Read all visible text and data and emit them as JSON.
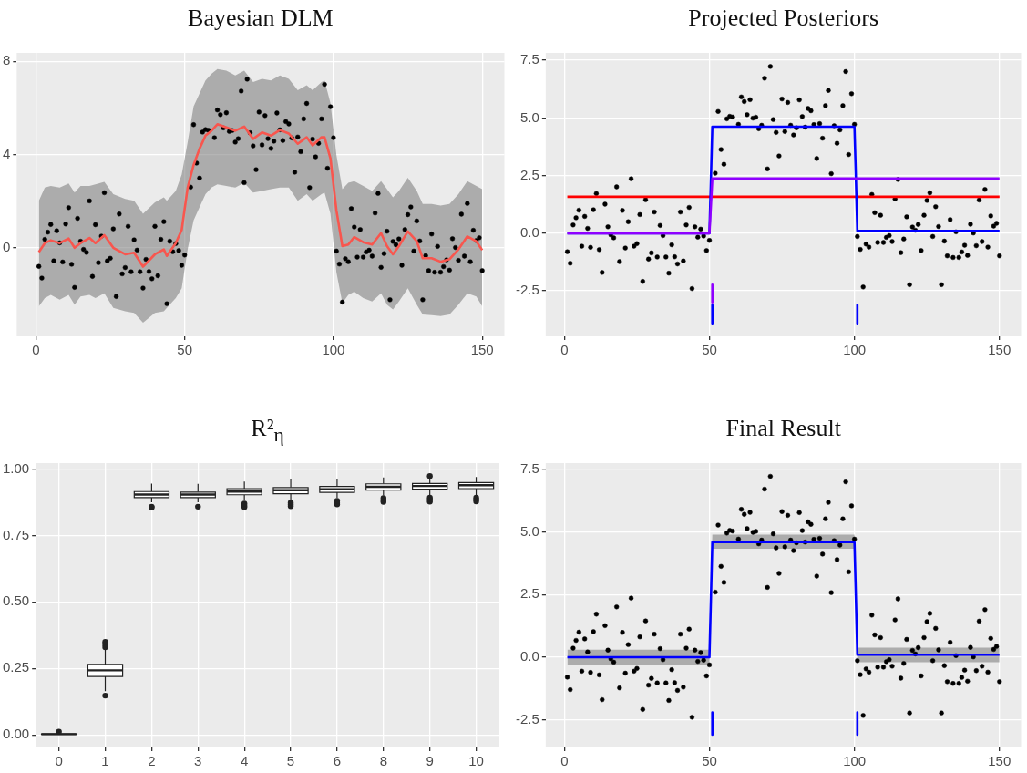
{
  "chart_data": [
    {
      "type": "line",
      "title": "Bayesian DLM",
      "xlim": [
        -6.45,
        157.45
      ],
      "xticks": [
        0,
        50,
        100,
        150
      ],
      "ylim": [
        -3.8,
        8.36
      ],
      "yticks": [
        0,
        4,
        8
      ],
      "grid": true,
      "series": [
        {
          "type": "scatter",
          "marker": "circle",
          "color": "#000000",
          "x": [
            1,
            2,
            3,
            4,
            5,
            6,
            7,
            8,
            9,
            10,
            11,
            12,
            13,
            14,
            15,
            16,
            17,
            18,
            19,
            20,
            21,
            22,
            23,
            24,
            25,
            26,
            27,
            28,
            29,
            30,
            31,
            32,
            33,
            34,
            35,
            36,
            37,
            38,
            39,
            40,
            41,
            42,
            43,
            44,
            45,
            46,
            47,
            48,
            49,
            50,
            52,
            53,
            54,
            55,
            56,
            57,
            58,
            60,
            61,
            62,
            63,
            64,
            65,
            66,
            67,
            68,
            69,
            70,
            71,
            72,
            73,
            74,
            75,
            76,
            77,
            78,
            79,
            80,
            81,
            82,
            83,
            84,
            85,
            86,
            87,
            88,
            89,
            90,
            91,
            92,
            93,
            94,
            95,
            96,
            97,
            98,
            99,
            100,
            101,
            102,
            103,
            104,
            105,
            106,
            107,
            108,
            109,
            110,
            111,
            112,
            113,
            114,
            115,
            116,
            117,
            118,
            119,
            120,
            121,
            122,
            123,
            124,
            125,
            126,
            127,
            128,
            129,
            130,
            131,
            132,
            133,
            134,
            135,
            136,
            137,
            138,
            139,
            140,
            141,
            142,
            143,
            144,
            145,
            146,
            147,
            148,
            149,
            150
          ],
          "values": [
            -0.8,
            -1.3,
            0.36,
            0.67,
            1.0,
            -0.56,
            0.73,
            0.21,
            -0.61,
            1.02,
            1.72,
            -0.71,
            -1.7,
            1.26,
            0.28,
            -0.07,
            -0.2,
            2.01,
            -1.23,
            0.99,
            -0.64,
            0.5,
            2.36,
            -0.56,
            -0.45,
            0.81,
            -2.09,
            1.45,
            -1.12,
            -0.85,
            0.92,
            -1.03,
            0.34,
            -0.1,
            -1.03,
            -1.73,
            -0.5,
            -1.02,
            -1.33,
            0.92,
            -1.2,
            0.36,
            1.12,
            -2.4,
            0.28,
            -0.17,
            0.18,
            -0.12,
            -0.75,
            -0.31,
            2.6,
            5.28,
            3.63,
            2.99,
            4.96,
            5.07,
            5.04,
            4.72,
            5.91,
            5.71,
            5.14,
            5.79,
            4.99,
            5.03,
            4.53,
            4.68,
            6.72,
            2.79,
            7.23,
            4.93,
            4.37,
            3.35,
            5.82,
            4.41,
            5.67,
            4.68,
            4.26,
            4.57,
            5.78,
            5.06,
            4.6,
            5.41,
            5.31,
            4.71,
            3.24,
            4.75,
            4.12,
            5.53,
            6.19,
            2.58,
            4.66,
            3.9,
            4.48,
            5.53,
            7.01,
            3.41,
            6.05,
            4.72,
            -0.14,
            -0.7,
            -2.33,
            -0.47,
            -0.6,
            1.68,
            0.89,
            -0.4,
            0.78,
            -0.4,
            -0.18,
            -0.1,
            -0.36,
            1.49,
            2.33,
            -0.84,
            -0.25,
            0.71,
            -2.23,
            0.27,
            0.13,
            0.38,
            -0.75,
            0.78,
            1.42,
            1.75,
            -0.14,
            1.15,
            0.29,
            -2.23,
            -0.34,
            -0.98,
            0.59,
            -1.05,
            0.06,
            -1.05,
            -0.81,
            -0.52,
            -0.96,
            0.39,
            0.01,
            -0.54,
            1.44,
            -0.36,
            1.9,
            -0.6,
            0.75,
            0.31,
            0.43,
            -0.98
          ]
        },
        {
          "type": "line",
          "color": "#f8564e",
          "x": [
            1,
            3,
            5,
            8,
            11,
            13,
            15,
            18,
            20,
            23,
            26,
            30,
            33,
            36,
            40,
            43,
            44,
            47,
            49,
            51,
            53,
            55,
            57,
            59,
            61,
            64,
            67,
            70,
            73,
            76,
            79,
            82,
            85,
            88,
            91,
            93,
            96,
            97,
            99,
            101,
            103,
            105,
            107,
            110,
            113,
            116,
            118,
            120,
            122,
            125,
            128,
            130,
            133,
            136,
            139,
            142,
            145,
            148,
            150
          ],
          "values": [
            -0.18,
            0.2,
            0.32,
            0.2,
            0.4,
            0,
            0.2,
            0.42,
            0.2,
            0.54,
            0,
            -0.28,
            -0.21,
            -0.81,
            -0.28,
            -0.07,
            -0.35,
            0.2,
            0.77,
            2.58,
            3.55,
            4.25,
            4.81,
            5.02,
            5.3,
            5.16,
            5.02,
            5.2,
            4.67,
            4.95,
            4.81,
            5.05,
            4.9,
            4.46,
            4.74,
            4.39,
            4.74,
            4.74,
            3.83,
            1.6,
            0.07,
            0.14,
            0.46,
            0.24,
            0.14,
            0.63,
            0.07,
            -0.28,
            0.07,
            0.7,
            0.28,
            -0.45,
            -0.45,
            -0.6,
            -0.49,
            -0.07,
            0.49,
            0.28,
            -0.1
          ],
          "lower": [
            -2.51,
            -2.16,
            -2.02,
            -2.23,
            -2.02,
            -2.44,
            -2.09,
            -2.02,
            -2.16,
            -1.95,
            -2.58,
            -2.72,
            -2.79,
            -3.21,
            -2.79,
            -2.72,
            -2.58,
            -2.16,
            -1.74,
            -0.07,
            1.18,
            1.74,
            2.3,
            2.58,
            2.72,
            2.65,
            2.58,
            2.79,
            2.37,
            2.44,
            2.51,
            2.58,
            2.58,
            2.02,
            2.3,
            2.02,
            2.3,
            2.37,
            1.46,
            -1.05,
            -2.37,
            -2.02,
            -1.88,
            -2.16,
            -2.3,
            -1.95,
            -2.44,
            -2.65,
            -2.3,
            -1.74,
            -2.44,
            -2.86,
            -2.89,
            -2.93,
            -2.86,
            -2.44,
            -1.95,
            -2.09,
            -2.51
          ],
          "upper": [
            2.02,
            2.58,
            2.65,
            2.58,
            2.76,
            2.37,
            2.65,
            2.65,
            2.72,
            2.83,
            2.3,
            2.09,
            2.02,
            1.46,
            1.95,
            2.16,
            2.02,
            2.44,
            3.14,
            4.53,
            6.06,
            6.62,
            7.18,
            7.46,
            7.67,
            7.6,
            7.39,
            7.6,
            7.11,
            7.25,
            7.18,
            7.39,
            7.25,
            6.76,
            6.97,
            6.76,
            7.11,
            7.18,
            6.2,
            3.97,
            2.51,
            2.79,
            2.86,
            2.65,
            2.44,
            2.86,
            2.51,
            2.16,
            2.44,
            3.0,
            2.44,
            1.88,
            1.88,
            1.81,
            1.88,
            2.3,
            2.86,
            2.65,
            2.51
          ]
        }
      ]
    },
    {
      "type": "line",
      "title": "Projected Posteriors",
      "xlim": [
        -6.45,
        157.45
      ],
      "xticks": [
        0,
        50,
        100,
        150
      ],
      "ylim": [
        -4.47,
        7.82
      ],
      "yticks": [
        -2.5,
        {
          "value": 0,
          "label": "0.0"
        },
        2.5,
        {
          "value": 5,
          "label": "5.0"
        },
        7.5
      ],
      "grid": true,
      "series": [
        {
          "type": "scatter",
          "marker": "circle",
          "color": "#000000",
          "x": [
            1,
            2,
            3,
            4,
            5,
            6,
            7,
            8,
            9,
            10,
            11,
            12,
            13,
            14,
            15,
            16,
            17,
            18,
            19,
            20,
            21,
            22,
            23,
            24,
            25,
            26,
            27,
            28,
            29,
            30,
            31,
            32,
            33,
            34,
            35,
            36,
            37,
            38,
            39,
            40,
            41,
            42,
            43,
            44,
            45,
            46,
            47,
            48,
            49,
            50,
            52,
            53,
            54,
            55,
            56,
            57,
            58,
            60,
            61,
            62,
            63,
            64,
            65,
            66,
            67,
            68,
            69,
            70,
            71,
            72,
            73,
            74,
            75,
            76,
            77,
            78,
            79,
            80,
            81,
            82,
            83,
            84,
            85,
            86,
            87,
            88,
            89,
            90,
            91,
            92,
            93,
            94,
            95,
            96,
            97,
            98,
            99,
            100,
            101,
            102,
            103,
            104,
            105,
            106,
            107,
            108,
            109,
            110,
            111,
            112,
            113,
            114,
            115,
            116,
            117,
            118,
            119,
            120,
            121,
            122,
            123,
            124,
            125,
            126,
            127,
            128,
            129,
            130,
            131,
            132,
            133,
            134,
            135,
            136,
            137,
            138,
            139,
            140,
            141,
            142,
            143,
            144,
            145,
            146,
            147,
            148,
            149,
            150
          ],
          "values": [
            -0.8,
            -1.3,
            0.36,
            0.67,
            1.0,
            -0.56,
            0.73,
            0.21,
            -0.61,
            1.02,
            1.72,
            -0.71,
            -1.7,
            1.26,
            0.28,
            -0.07,
            -0.2,
            2.01,
            -1.23,
            0.99,
            -0.64,
            0.5,
            2.36,
            -0.56,
            -0.45,
            0.81,
            -2.09,
            1.45,
            -1.12,
            -0.85,
            0.92,
            -1.03,
            0.34,
            -0.1,
            -1.03,
            -1.73,
            -0.5,
            -1.02,
            -1.33,
            0.92,
            -1.2,
            0.36,
            1.12,
            -2.4,
            0.28,
            -0.17,
            0.18,
            -0.12,
            -0.75,
            -0.31,
            2.6,
            5.28,
            3.63,
            2.99,
            4.96,
            5.07,
            5.04,
            4.72,
            5.91,
            5.71,
            5.14,
            5.79,
            4.99,
            5.03,
            4.53,
            4.68,
            6.72,
            2.79,
            7.23,
            4.93,
            4.37,
            3.35,
            5.82,
            4.41,
            5.67,
            4.68,
            4.26,
            4.57,
            5.78,
            5.06,
            4.6,
            5.41,
            5.31,
            4.71,
            3.24,
            4.75,
            4.12,
            5.53,
            6.19,
            2.58,
            4.66,
            3.9,
            4.48,
            5.53,
            7.01,
            3.41,
            6.05,
            4.72,
            -0.14,
            -0.7,
            -2.33,
            -0.47,
            -0.6,
            1.68,
            0.89,
            -0.4,
            0.78,
            -0.4,
            -0.18,
            -0.1,
            -0.36,
            1.49,
            2.33,
            -0.84,
            -0.25,
            0.71,
            -2.23,
            0.27,
            0.13,
            0.38,
            -0.75,
            0.78,
            1.42,
            1.75,
            -0.14,
            1.15,
            0.29,
            -2.23,
            -0.34,
            -0.98,
            0.59,
            -1.05,
            0.06,
            -1.05,
            -0.81,
            -0.52,
            -0.96,
            0.39,
            0.01,
            -0.54,
            1.44,
            -0.36,
            1.9,
            -0.6,
            0.75,
            0.31,
            0.43,
            -0.98
          ]
        },
        {
          "type": "line",
          "color": "#ff0000",
          "x": [
            1,
            150
          ],
          "values": [
            1.58,
            1.58
          ]
        },
        {
          "type": "line",
          "color": "#0000ff",
          "x": [
            1,
            50,
            51,
            100,
            101,
            150
          ],
          "values": [
            0,
            0,
            4.62,
            4.62,
            0.1,
            0.1
          ]
        },
        {
          "type": "line",
          "color": "#8f00ff",
          "x": [
            1,
            50,
            51,
            150
          ],
          "values": [
            0,
            0,
            2.37,
            2.37
          ]
        },
        {
          "type": "line",
          "color": "#8f00ff",
          "x": [
            51,
            51
          ],
          "values": [
            -2.23,
            -3.0
          ]
        },
        {
          "type": "line",
          "color": "#0000ff",
          "x": [
            51,
            51
          ],
          "values": [
            -3.11,
            -3.91
          ]
        },
        {
          "type": "line",
          "color": "#0000ff",
          "x": [
            101,
            101
          ],
          "values": [
            -3.11,
            -3.91
          ]
        }
      ]
    },
    {
      "type": "box",
      "title": "R²$_{η}$",
      "categories": [
        "0",
        "1",
        "2",
        "3",
        "4",
        "5",
        "6",
        "8",
        "9",
        "10"
      ],
      "ylim": [
        -0.047,
        1.022
      ],
      "yticks": [
        {
          "value": 0,
          "label": "0.00"
        },
        {
          "value": 0.25,
          "label": "0.25"
        },
        {
          "value": 0.5,
          "label": "0.50"
        },
        {
          "value": 0.75,
          "label": "0.75"
        },
        {
          "value": 1,
          "label": "1.00"
        }
      ],
      "grid": true,
      "boxes": [
        {
          "low": 0.002,
          "q1": 0.002,
          "median": 0.003,
          "q3": 0.004,
          "high": 0.004,
          "outliers": [
            0.012
          ]
        },
        {
          "low": 0.165,
          "q1": 0.22,
          "median": 0.243,
          "q3": 0.265,
          "high": 0.32,
          "outliers": [
            0.148,
            0.33,
            0.34,
            0.35
          ]
        },
        {
          "low": 0.875,
          "q1": 0.892,
          "median": 0.904,
          "q3": 0.915,
          "high": 0.945,
          "outliers": [
            0.855,
            0.858
          ]
        },
        {
          "low": 0.875,
          "q1": 0.892,
          "median": 0.904,
          "q3": 0.913,
          "high": 0.944,
          "outliers": [
            0.858
          ]
        },
        {
          "low": 0.881,
          "q1": 0.903,
          "median": 0.915,
          "q3": 0.926,
          "high": 0.953,
          "outliers": [
            0.857,
            0.863,
            0.87
          ]
        },
        {
          "low": 0.883,
          "q1": 0.907,
          "median": 0.92,
          "q3": 0.93,
          "high": 0.96,
          "outliers": [
            0.86,
            0.866,
            0.873
          ]
        },
        {
          "low": 0.891,
          "q1": 0.912,
          "median": 0.924,
          "q3": 0.934,
          "high": 0.961,
          "outliers": [
            0.867,
            0.872,
            0.88
          ]
        },
        {
          "low": 0.9,
          "q1": 0.92,
          "median": 0.933,
          "q3": 0.944,
          "high": 0.968,
          "outliers": [
            0.876,
            0.882,
            0.89
          ]
        },
        {
          "low": 0.902,
          "q1": 0.924,
          "median": 0.936,
          "q3": 0.945,
          "high": 0.968,
          "outliers": [
            0.877,
            0.885,
            0.892,
            0.973
          ]
        },
        {
          "low": 0.902,
          "q1": 0.926,
          "median": 0.939,
          "q3": 0.949,
          "high": 0.97,
          "outliers": [
            0.878,
            0.885,
            0.892
          ]
        }
      ]
    },
    {
      "type": "line",
      "title": "Final Result",
      "xlim": [
        -6.45,
        157.45
      ],
      "xticks": [
        0,
        50,
        100,
        150
      ],
      "ylim": [
        -3.61,
        7.76
      ],
      "yticks": [
        -2.5,
        {
          "value": 0,
          "label": "0.0"
        },
        2.5,
        {
          "value": 5,
          "label": "5.0"
        },
        7.5
      ],
      "grid": true,
      "series": [
        {
          "type": "scatter",
          "marker": "circle",
          "color": "#000000",
          "x": [
            1,
            2,
            3,
            4,
            5,
            6,
            7,
            8,
            9,
            10,
            11,
            12,
            13,
            14,
            15,
            16,
            17,
            18,
            19,
            20,
            21,
            22,
            23,
            24,
            25,
            26,
            27,
            28,
            29,
            30,
            31,
            32,
            33,
            34,
            35,
            36,
            37,
            38,
            39,
            40,
            41,
            42,
            43,
            44,
            45,
            46,
            47,
            48,
            49,
            50,
            52,
            53,
            54,
            55,
            56,
            57,
            58,
            60,
            61,
            62,
            63,
            64,
            65,
            66,
            67,
            68,
            69,
            70,
            71,
            72,
            73,
            74,
            75,
            76,
            77,
            78,
            79,
            80,
            81,
            82,
            83,
            84,
            85,
            86,
            87,
            88,
            89,
            90,
            91,
            92,
            93,
            94,
            95,
            96,
            97,
            98,
            99,
            100,
            101,
            102,
            103,
            104,
            105,
            106,
            107,
            108,
            109,
            110,
            111,
            112,
            113,
            114,
            115,
            116,
            117,
            118,
            119,
            120,
            121,
            122,
            123,
            124,
            125,
            126,
            127,
            128,
            129,
            130,
            131,
            132,
            133,
            134,
            135,
            136,
            137,
            138,
            139,
            140,
            141,
            142,
            143,
            144,
            145,
            146,
            147,
            148,
            149,
            150
          ],
          "values": [
            -0.8,
            -1.3,
            0.36,
            0.67,
            1.0,
            -0.56,
            0.73,
            0.21,
            -0.61,
            1.02,
            1.72,
            -0.71,
            -1.7,
            1.26,
            0.28,
            -0.07,
            -0.2,
            2.01,
            -1.23,
            0.99,
            -0.64,
            0.5,
            2.36,
            -0.56,
            -0.45,
            0.81,
            -2.09,
            1.45,
            -1.12,
            -0.85,
            0.92,
            -1.03,
            0.34,
            -0.1,
            -1.03,
            -1.73,
            -0.5,
            -1.02,
            -1.33,
            0.92,
            -1.2,
            0.36,
            1.12,
            -2.4,
            0.28,
            -0.17,
            0.18,
            -0.12,
            -0.75,
            -0.31,
            2.6,
            5.28,
            3.63,
            2.99,
            4.96,
            5.07,
            5.04,
            4.72,
            5.91,
            5.71,
            5.14,
            5.79,
            4.99,
            5.03,
            4.53,
            4.68,
            6.72,
            2.79,
            7.23,
            4.93,
            4.37,
            3.35,
            5.82,
            4.41,
            5.67,
            4.68,
            4.26,
            4.57,
            5.78,
            5.06,
            4.6,
            5.41,
            5.31,
            4.71,
            3.24,
            4.75,
            4.12,
            5.53,
            6.19,
            2.58,
            4.66,
            3.9,
            4.48,
            5.53,
            7.01,
            3.41,
            6.05,
            4.72,
            -0.14,
            -0.7,
            -2.33,
            -0.47,
            -0.6,
            1.68,
            0.89,
            -0.4,
            0.78,
            -0.4,
            -0.18,
            -0.1,
            -0.36,
            1.49,
            2.33,
            -0.84,
            -0.25,
            0.71,
            -2.23,
            0.27,
            0.13,
            0.38,
            -0.75,
            0.78,
            1.42,
            1.75,
            -0.14,
            1.15,
            0.29,
            -2.23,
            -0.34,
            -0.98,
            0.59,
            -1.05,
            0.06,
            -1.05,
            -0.81,
            -0.52,
            -0.96,
            0.39,
            0.01,
            -0.54,
            1.44,
            -0.36,
            1.9,
            -0.6,
            0.75,
            0.31,
            0.43,
            -0.98
          ]
        },
        {
          "type": "line",
          "color": "#0000ff",
          "x": [
            1,
            50,
            51,
            100,
            101,
            150
          ],
          "values": [
            0,
            0,
            4.6,
            4.6,
            0.1,
            0.1
          ],
          "lower": [
            -0.3,
            -0.3,
            4.33,
            4.33,
            -0.2,
            -0.2
          ],
          "upper": [
            0.3,
            0.3,
            4.9,
            4.9,
            0.38,
            0.38
          ]
        },
        {
          "type": "line",
          "color": "#0000ff",
          "x": [
            51,
            51
          ],
          "values": [
            -2.21,
            -3.1
          ]
        },
        {
          "type": "line",
          "color": "#0000ff",
          "x": [
            101,
            101
          ],
          "values": [
            -2.21,
            -3.1
          ]
        }
      ]
    }
  ]
}
